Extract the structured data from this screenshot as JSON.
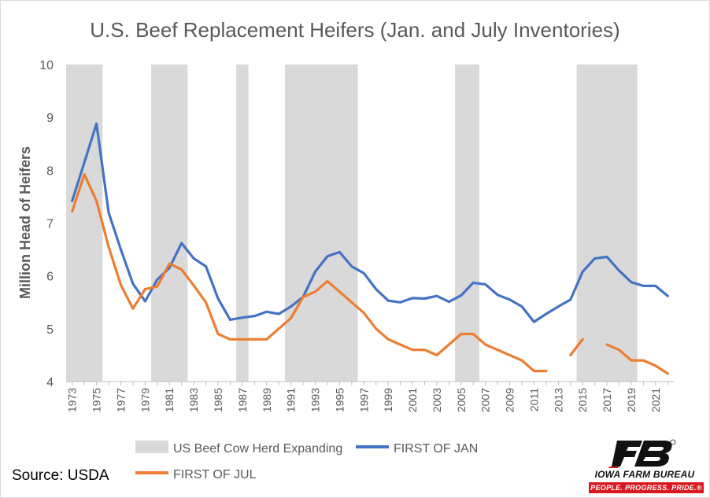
{
  "chart_data": {
    "type": "line",
    "title": "U.S. Beef Replacement Heifers (Jan. and July Inventories)",
    "xlabel": "",
    "ylabel": "Million Head of Heifers",
    "ylim": [
      4,
      10
    ],
    "yticks": [
      "4",
      "5",
      "6",
      "7",
      "8",
      "9",
      "10"
    ],
    "xlim": [
      1973,
      2022
    ],
    "xticks": [
      "1973",
      "1975",
      "1977",
      "1979",
      "1981",
      "1983",
      "1985",
      "1987",
      "1989",
      "1991",
      "1993",
      "1995",
      "1997",
      "1999",
      "2001",
      "2003",
      "2005",
      "2007",
      "2009",
      "2011",
      "2013",
      "2015",
      "2017",
      "2019",
      "2021"
    ],
    "grid": false,
    "legend_position": "bottom",
    "shaded_periods": {
      "name": "US Beef Cow Herd Expanding",
      "color": "#d9d9d9",
      "ranges": [
        [
          1972.5,
          1975.5
        ],
        [
          1979.5,
          1982.5
        ],
        [
          1986.5,
          1987.5
        ],
        [
          1990.5,
          1996.5
        ],
        [
          2004.5,
          2006.5
        ],
        [
          2014.5,
          2019.5
        ]
      ]
    },
    "series": [
      {
        "name": "FIRST OF JAN",
        "color": "#4472c4",
        "x": [
          1973,
          1974,
          1975,
          1976,
          1977,
          1978,
          1979,
          1980,
          1981,
          1982,
          1983,
          1984,
          1985,
          1986,
          1987,
          1988,
          1989,
          1990,
          1991,
          1992,
          1993,
          1994,
          1995,
          1996,
          1997,
          1998,
          1999,
          2000,
          2001,
          2002,
          2003,
          2004,
          2005,
          2006,
          2007,
          2008,
          2009,
          2010,
          2011,
          2012,
          2013,
          2014,
          2015,
          2016,
          2017,
          2018,
          2019,
          2020,
          2021,
          2022
        ],
        "values": [
          7.42,
          8.15,
          8.88,
          7.2,
          6.5,
          5.85,
          5.52,
          5.93,
          6.15,
          6.62,
          6.33,
          6.18,
          5.57,
          5.17,
          5.21,
          5.24,
          5.32,
          5.28,
          5.42,
          5.6,
          6.08,
          6.37,
          6.45,
          6.18,
          6.05,
          5.75,
          5.53,
          5.5,
          5.58,
          5.57,
          5.62,
          5.51,
          5.63,
          5.87,
          5.84,
          5.64,
          5.55,
          5.42,
          5.13,
          5.28,
          5.42,
          5.55,
          6.08,
          6.33,
          6.36,
          6.1,
          5.88,
          5.81,
          5.81,
          5.62
        ]
      },
      {
        "name": "FIRST OF JUL",
        "color": "#ed7d31",
        "x": [
          1973,
          1974,
          1975,
          1976,
          1977,
          1978,
          1979,
          1980,
          1981,
          1982,
          1983,
          1984,
          1985,
          1986,
          1987,
          1988,
          1989,
          1990,
          1991,
          1992,
          1993,
          1994,
          1995,
          1996,
          1997,
          1998,
          1999,
          2000,
          2001,
          2002,
          2003,
          2004,
          2005,
          2006,
          2007,
          2008,
          2009,
          2010,
          2011,
          2012,
          2013,
          2014,
          2015,
          2016,
          2017,
          2018,
          2019,
          2020,
          2021,
          2022
        ],
        "values": [
          7.22,
          7.92,
          7.42,
          6.55,
          5.83,
          5.38,
          5.75,
          5.8,
          6.23,
          6.12,
          5.82,
          5.5,
          4.9,
          4.8,
          4.8,
          4.8,
          4.8,
          5.0,
          5.2,
          5.6,
          5.7,
          5.9,
          5.7,
          5.5,
          5.3,
          5.0,
          4.8,
          4.7,
          4.6,
          4.6,
          4.5,
          4.7,
          4.9,
          4.9,
          4.7,
          4.6,
          4.5,
          4.4,
          4.2,
          4.2,
          null,
          4.5,
          4.8,
          null,
          4.7,
          4.6,
          4.4,
          4.4,
          4.3,
          4.15
        ]
      }
    ]
  },
  "source_label": "Source: USDA",
  "logo": {
    "name": "IOWA FARM BUREAU",
    "tagline": "PEOPLE. PROGRESS. PRIDE.®",
    "brand_color": "#d71920"
  }
}
